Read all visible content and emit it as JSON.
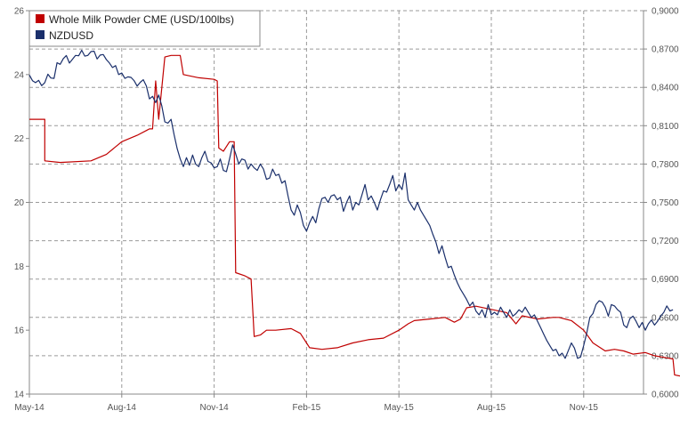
{
  "chart_data": {
    "type": "line",
    "x_tick_labels": [
      "May-14",
      "Aug-14",
      "Nov-14",
      "Feb-15",
      "May-15",
      "Aug-15",
      "Nov-15"
    ],
    "y_left": {
      "ylim": [
        14,
        26
      ],
      "ticks": [
        "14",
        "16",
        "18",
        "20",
        "22",
        "24",
        "26"
      ]
    },
    "y_right": {
      "ylim": [
        0.6,
        0.9
      ],
      "ticks": [
        "0,6000",
        "0,6300",
        "0,6600",
        "0,6900",
        "0,7200",
        "0,7500",
        "0,7800",
        "0,8100",
        "0,8400",
        "0,8700",
        "0,9000"
      ]
    },
    "grid": true,
    "legend": "top-left",
    "series": [
      {
        "name": "Whole Milk Powder CME (USD/100lbs)",
        "axis": "left",
        "color": "#c00000",
        "points": [
          [
            0,
            22.6
          ],
          [
            0.5,
            22.6
          ],
          [
            0.5,
            21.3
          ],
          [
            1,
            21.25
          ],
          [
            2,
            21.3
          ],
          [
            2.5,
            21.5
          ],
          [
            3,
            21.9
          ],
          [
            3.5,
            22.1
          ],
          [
            3.8,
            22.25
          ],
          [
            3.9,
            22.3
          ],
          [
            4,
            22.3
          ],
          [
            4.1,
            23.8
          ],
          [
            4.2,
            22.6
          ],
          [
            4.4,
            24.55
          ],
          [
            4.6,
            24.6
          ],
          [
            4.9,
            24.6
          ],
          [
            5.0,
            24.0
          ],
          [
            5.5,
            23.9
          ],
          [
            6.0,
            23.85
          ],
          [
            6.1,
            23.8
          ],
          [
            6.15,
            21.7
          ],
          [
            6.3,
            21.6
          ],
          [
            6.5,
            21.9
          ],
          [
            6.65,
            21.9
          ],
          [
            6.7,
            17.8
          ],
          [
            7.0,
            17.7
          ],
          [
            7.2,
            17.6
          ],
          [
            7.3,
            15.8
          ],
          [
            7.5,
            15.85
          ],
          [
            7.7,
            16.0
          ],
          [
            8.0,
            16.0
          ],
          [
            8.5,
            16.05
          ],
          [
            8.8,
            15.9
          ],
          [
            9.0,
            15.6
          ],
          [
            9.1,
            15.45
          ],
          [
            9.5,
            15.4
          ],
          [
            10,
            15.45
          ],
          [
            10.5,
            15.6
          ],
          [
            11,
            15.7
          ],
          [
            11.5,
            15.75
          ],
          [
            12,
            16.0
          ],
          [
            12.3,
            16.2
          ],
          [
            12.5,
            16.3
          ],
          [
            13,
            16.35
          ],
          [
            13.5,
            16.4
          ],
          [
            13.8,
            16.25
          ],
          [
            14,
            16.35
          ],
          [
            14.2,
            16.7
          ],
          [
            14.5,
            16.75
          ],
          [
            15,
            16.65
          ],
          [
            15.5,
            16.55
          ],
          [
            15.8,
            16.2
          ],
          [
            16,
            16.45
          ],
          [
            16.5,
            16.35
          ],
          [
            17,
            16.4
          ],
          [
            17.2,
            16.4
          ],
          [
            17.6,
            16.3
          ],
          [
            18,
            16.0
          ],
          [
            18.3,
            15.6
          ],
          [
            18.7,
            15.35
          ],
          [
            19,
            15.4
          ],
          [
            19.3,
            15.35
          ],
          [
            19.6,
            15.25
          ],
          [
            20,
            15.3
          ],
          [
            20.3,
            15.2
          ],
          [
            20.6,
            15.15
          ],
          [
            20.9,
            15.1
          ],
          [
            20.95,
            14.6
          ],
          [
            21.2,
            14.55
          ]
        ]
      },
      {
        "name": "NZDUSD",
        "axis": "right",
        "color": "#1a2f6b",
        "points": [
          [
            0,
            0.8497
          ],
          [
            0.1,
            0.8452
          ],
          [
            0.2,
            0.8437
          ],
          [
            0.3,
            0.8455
          ],
          [
            0.4,
            0.8413
          ],
          [
            0.5,
            0.8437
          ],
          [
            0.6,
            0.8503
          ],
          [
            0.7,
            0.8473
          ],
          [
            0.8,
            0.847
          ],
          [
            0.9,
            0.8593
          ],
          [
            1.0,
            0.858
          ],
          [
            1.1,
            0.8625
          ],
          [
            1.2,
            0.8649
          ],
          [
            1.3,
            0.859
          ],
          [
            1.4,
            0.862
          ],
          [
            1.5,
            0.865
          ],
          [
            1.6,
            0.8647
          ],
          [
            1.7,
            0.869
          ],
          [
            1.8,
            0.8644
          ],
          [
            1.9,
            0.865
          ],
          [
            2.0,
            0.868
          ],
          [
            2.1,
            0.8683
          ],
          [
            2.2,
            0.8622
          ],
          [
            2.3,
            0.8653
          ],
          [
            2.4,
            0.8657
          ],
          [
            2.5,
            0.8617
          ],
          [
            2.6,
            0.859
          ],
          [
            2.7,
            0.8555
          ],
          [
            2.8,
            0.857
          ],
          [
            2.9,
            0.85
          ],
          [
            3.0,
            0.8512
          ],
          [
            3.1,
            0.847
          ],
          [
            3.2,
            0.8482
          ],
          [
            3.3,
            0.8478
          ],
          [
            3.4,
            0.8453
          ],
          [
            3.5,
            0.841
          ],
          [
            3.6,
            0.844
          ],
          [
            3.7,
            0.846
          ],
          [
            3.8,
            0.841
          ],
          [
            3.9,
            0.831
          ],
          [
            4.0,
            0.833
          ],
          [
            4.1,
            0.828
          ],
          [
            4.2,
            0.834
          ],
          [
            4.3,
            0.8255
          ],
          [
            4.4,
            0.813
          ],
          [
            4.5,
            0.812
          ],
          [
            4.6,
            0.815
          ],
          [
            4.7,
            0.803
          ],
          [
            4.8,
            0.792
          ],
          [
            4.9,
            0.784
          ],
          [
            5.0,
            0.778
          ],
          [
            5.1,
            0.785
          ],
          [
            5.2,
            0.779
          ],
          [
            5.3,
            0.787
          ],
          [
            5.4,
            0.78
          ],
          [
            5.5,
            0.778
          ],
          [
            5.6,
            0.785
          ],
          [
            5.7,
            0.79
          ],
          [
            5.8,
            0.782
          ],
          [
            5.9,
            0.781
          ],
          [
            6.0,
            0.777
          ],
          [
            6.1,
            0.778
          ],
          [
            6.2,
            0.784
          ],
          [
            6.3,
            0.775
          ],
          [
            6.4,
            0.774
          ],
          [
            6.5,
            0.784
          ],
          [
            6.6,
            0.795
          ],
          [
            6.7,
            0.788
          ],
          [
            6.8,
            0.78
          ],
          [
            6.9,
            0.784
          ],
          [
            7.0,
            0.783
          ],
          [
            7.1,
            0.776
          ],
          [
            7.2,
            0.78
          ],
          [
            7.3,
            0.777
          ],
          [
            7.4,
            0.775
          ],
          [
            7.5,
            0.78
          ],
          [
            7.6,
            0.776
          ],
          [
            7.7,
            0.768
          ],
          [
            7.8,
            0.769
          ],
          [
            7.9,
            0.776
          ],
          [
            8.0,
            0.771
          ],
          [
            8.1,
            0.772
          ],
          [
            8.2,
            0.765
          ],
          [
            8.3,
            0.767
          ],
          [
            8.4,
            0.755
          ],
          [
            8.5,
            0.744
          ],
          [
            8.6,
            0.74
          ],
          [
            8.7,
            0.748
          ],
          [
            8.8,
            0.742
          ],
          [
            8.9,
            0.732
          ],
          [
            9.0,
            0.7275
          ],
          [
            9.1,
            0.7342
          ],
          [
            9.2,
            0.739
          ],
          [
            9.3,
            0.734
          ],
          [
            9.4,
            0.745
          ],
          [
            9.5,
            0.753
          ],
          [
            9.6,
            0.754
          ],
          [
            9.7,
            0.75
          ],
          [
            9.8,
            0.755
          ],
          [
            9.9,
            0.756
          ],
          [
            10.0,
            0.752
          ],
          [
            10.1,
            0.754
          ],
          [
            10.2,
            0.743
          ],
          [
            10.3,
            0.75
          ],
          [
            10.4,
            0.755
          ],
          [
            10.5,
            0.744
          ],
          [
            10.6,
            0.75
          ],
          [
            10.7,
            0.748
          ],
          [
            10.8,
            0.756
          ],
          [
            10.9,
            0.764
          ],
          [
            11.0,
            0.752
          ],
          [
            11.1,
            0.755
          ],
          [
            11.2,
            0.75
          ],
          [
            11.3,
            0.744
          ],
          [
            11.4,
            0.752
          ],
          [
            11.5,
            0.759
          ],
          [
            11.6,
            0.758
          ],
          [
            11.7,
            0.764
          ],
          [
            11.8,
            0.771
          ],
          [
            11.9,
            0.759
          ],
          [
            12.0,
            0.764
          ],
          [
            12.1,
            0.76
          ],
          [
            12.2,
            0.773
          ],
          [
            12.3,
            0.752
          ],
          [
            12.4,
            0.748
          ],
          [
            12.5,
            0.744
          ],
          [
            12.6,
            0.75
          ],
          [
            12.7,
            0.744
          ],
          [
            12.8,
            0.74
          ],
          [
            12.9,
            0.736
          ],
          [
            13.0,
            0.732
          ],
          [
            13.1,
            0.725
          ],
          [
            13.2,
            0.719
          ],
          [
            13.3,
            0.71
          ],
          [
            13.4,
            0.716
          ],
          [
            13.5,
            0.707
          ],
          [
            13.6,
            0.699
          ],
          [
            13.7,
            0.7
          ],
          [
            13.8,
            0.693
          ],
          [
            13.9,
            0.687
          ],
          [
            14.0,
            0.682
          ],
          [
            14.1,
            0.678
          ],
          [
            14.2,
            0.674
          ],
          [
            14.3,
            0.669
          ],
          [
            14.4,
            0.672
          ],
          [
            14.5,
            0.665
          ],
          [
            14.6,
            0.662
          ],
          [
            14.7,
            0.666
          ],
          [
            14.8,
            0.66
          ],
          [
            14.9,
            0.67
          ],
          [
            15.0,
            0.662
          ],
          [
            15.1,
            0.664
          ],
          [
            15.2,
            0.662
          ],
          [
            15.3,
            0.668
          ],
          [
            15.4,
            0.664
          ],
          [
            15.5,
            0.66
          ],
          [
            15.6,
            0.666
          ],
          [
            15.7,
            0.661
          ],
          [
            15.8,
            0.663
          ],
          [
            15.9,
            0.666
          ],
          [
            16.0,
            0.664
          ],
          [
            16.1,
            0.668
          ],
          [
            16.2,
            0.664
          ],
          [
            16.3,
            0.66
          ],
          [
            16.4,
            0.662
          ],
          [
            16.5,
            0.657
          ],
          [
            16.6,
            0.652
          ],
          [
            16.7,
            0.647
          ],
          [
            16.8,
            0.642
          ],
          [
            16.9,
            0.638
          ],
          [
            17.0,
            0.634
          ],
          [
            17.1,
            0.635
          ],
          [
            17.2,
            0.63
          ],
          [
            17.3,
            0.632
          ],
          [
            17.4,
            0.628
          ],
          [
            17.5,
            0.634
          ],
          [
            17.6,
            0.64
          ],
          [
            17.7,
            0.636
          ],
          [
            17.8,
            0.628
          ],
          [
            17.9,
            0.629
          ],
          [
            18.0,
            0.638
          ],
          [
            18.1,
            0.648
          ],
          [
            18.2,
            0.66
          ],
          [
            18.3,
            0.663
          ],
          [
            18.4,
            0.67
          ],
          [
            18.5,
            0.673
          ],
          [
            18.6,
            0.672
          ],
          [
            18.7,
            0.668
          ],
          [
            18.8,
            0.661
          ],
          [
            18.9,
            0.67
          ],
          [
            19.0,
            0.669
          ],
          [
            19.1,
            0.666
          ],
          [
            19.2,
            0.664
          ],
          [
            19.3,
            0.654
          ],
          [
            19.4,
            0.652
          ],
          [
            19.5,
            0.659
          ],
          [
            19.6,
            0.661
          ],
          [
            19.7,
            0.657
          ],
          [
            19.8,
            0.652
          ],
          [
            19.9,
            0.656
          ],
          [
            20.0,
            0.65
          ],
          [
            20.1,
            0.655
          ],
          [
            20.2,
            0.658
          ],
          [
            20.3,
            0.654
          ],
          [
            20.4,
            0.657
          ],
          [
            20.5,
            0.661
          ],
          [
            20.6,
            0.664
          ],
          [
            20.7,
            0.669
          ],
          [
            20.8,
            0.665
          ],
          [
            20.9,
            0.666
          ]
        ]
      }
    ]
  }
}
